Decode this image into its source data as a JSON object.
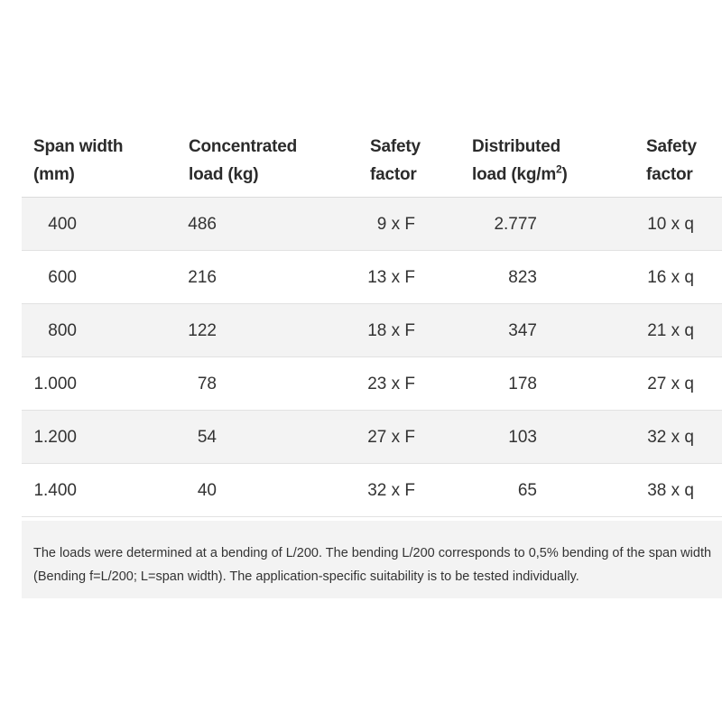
{
  "table": {
    "headers": {
      "span_width": [
        "Span width",
        "(mm)"
      ],
      "concentrated_load": [
        "Concentrated",
        "load (kg)"
      ],
      "safety_factor_1": [
        "Safety",
        "factor"
      ],
      "distributed_load": [
        "Distributed",
        "load (kg/m",
        "2",
        ")"
      ],
      "safety_factor_2": [
        "Safety",
        "factor"
      ]
    },
    "rows": [
      {
        "span": "400",
        "concentrated": "486",
        "sf1": "9 x F",
        "distributed": "2.777",
        "sf2": "10 x q"
      },
      {
        "span": "600",
        "concentrated": "216",
        "sf1": "13 x F",
        "distributed": "823",
        "sf2": "16 x q"
      },
      {
        "span": "800",
        "concentrated": "122",
        "sf1": "18 x F",
        "distributed": "347",
        "sf2": "21 x q"
      },
      {
        "span": "1.000",
        "concentrated": "78",
        "sf1": "23 x F",
        "distributed": "178",
        "sf2": "27 x q"
      },
      {
        "span": "1.200",
        "concentrated": "54",
        "sf1": "27 x F",
        "distributed": "103",
        "sf2": "32 x q"
      },
      {
        "span": "1.400",
        "concentrated": "40",
        "sf1": "32 x F",
        "distributed": "65",
        "sf2": "38 x q"
      }
    ]
  },
  "note": {
    "line1": "The loads were determined at a bending of L/200. The bending L/200 corresponds to 0,5% bending of the span width",
    "line2": "(Bending f=L/200; L=span width). The application-specific suitability is to be tested individually."
  }
}
